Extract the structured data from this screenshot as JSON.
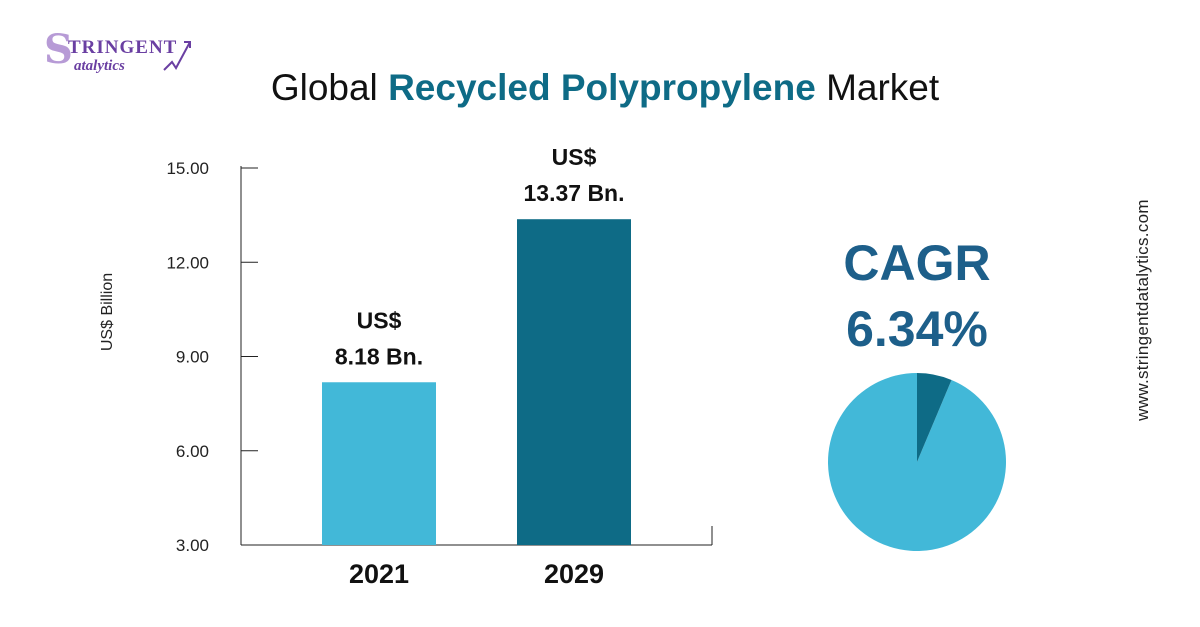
{
  "logo": {
    "initial": "S",
    "top": "TRINGENT",
    "bottom": "atalytics"
  },
  "title": {
    "prefix": "Global",
    "highlight": "Recycled Polypropylene",
    "suffix": "Market"
  },
  "website": "www.stringentdatalytics.com",
  "colors": {
    "bar_2021": "#42b8d8",
    "bar_2029": "#0e6b86",
    "cagr_text": "#1d5f8a",
    "pie_main": "#42b8d8",
    "pie_slice": "#0e6b86"
  },
  "chart_data": {
    "type": "bar",
    "categories": [
      "2021",
      "2029"
    ],
    "values": [
      8.18,
      13.37
    ],
    "data_labels": [
      {
        "line1": "US$",
        "line2": "8.18 Bn."
      },
      {
        "line1": "US$",
        "line2": "13.37 Bn."
      }
    ],
    "ylabel": "US$ Billion",
    "ylim": [
      3,
      15
    ],
    "yticks": [
      "3.00",
      "6.00",
      "9.00",
      "12.00",
      "15.00"
    ],
    "grid": false
  },
  "cagr": {
    "label": "CAGR",
    "value": "6.34%",
    "pie": {
      "type": "pie",
      "values": [
        6.34,
        93.66
      ]
    }
  }
}
